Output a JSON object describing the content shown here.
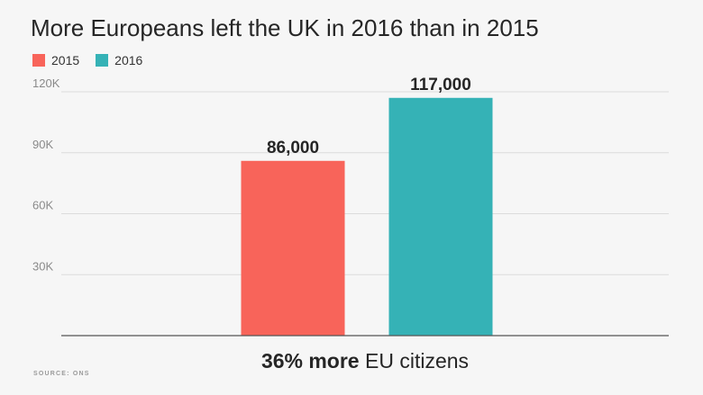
{
  "title": "More Europeans left the UK in 2016 than in 2015",
  "caption": {
    "bold": "36% more",
    "rest": " EU citizens"
  },
  "source": "SOURCE: ONS",
  "colors": {
    "s2015": "#f8645a",
    "s2016": "#35b2b6",
    "grid": "#dcdcdc",
    "axis": "#555555"
  },
  "chart_data": {
    "type": "bar",
    "title": "More Europeans left the UK in 2016 than in 2015",
    "categories": [
      "2015",
      "2016"
    ],
    "values": [
      86000,
      117000
    ],
    "data_labels": [
      "86,000",
      "117,000"
    ],
    "legend": [
      "2015",
      "2016"
    ],
    "legend_position": "top-left",
    "ylim": [
      0,
      120000
    ],
    "yticks": [
      30000,
      60000,
      90000,
      120000
    ],
    "ytick_labels": [
      "30K",
      "60K",
      "90K",
      "120K"
    ],
    "grid": true,
    "xlabel": "",
    "ylabel": ""
  }
}
